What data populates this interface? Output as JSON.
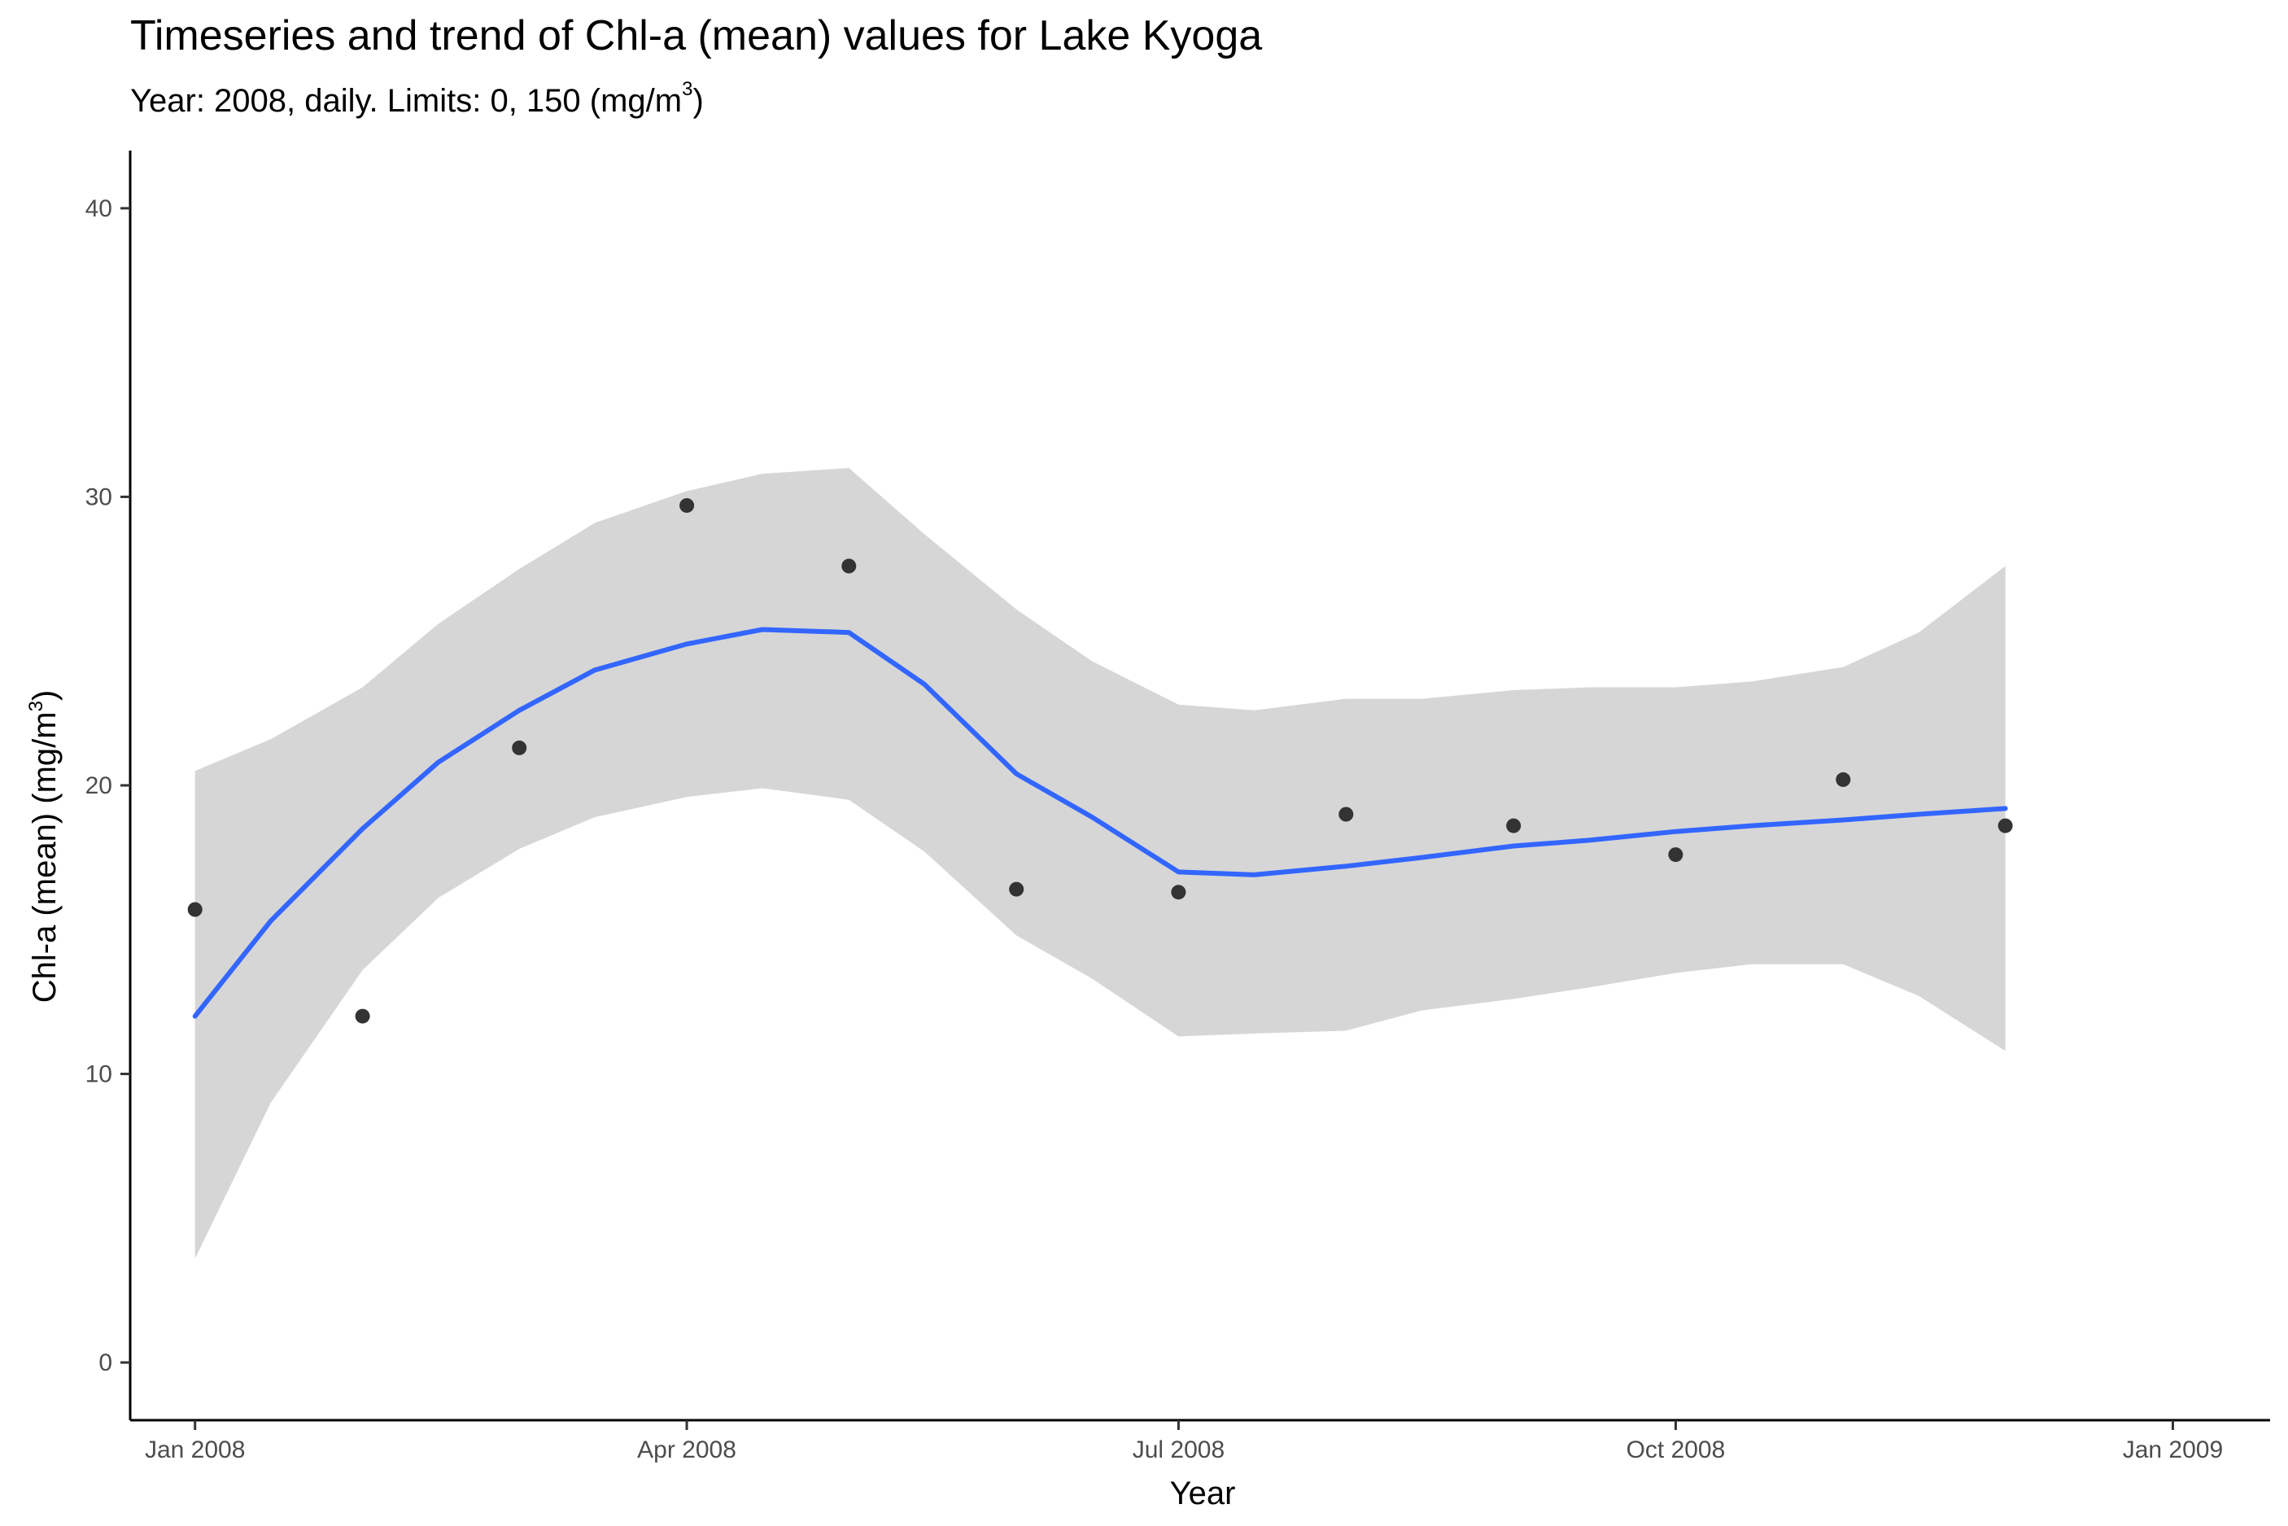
{
  "title": "Timeseries and trend of Chl-a (mean) values for Lake Kyoga",
  "subtitle": {
    "main": "Year: 2008, daily. Limits: 0, 150 (mg/m",
    "superscript": "3",
    "close": ")"
  },
  "chart_data": {
    "type": "scatter",
    "xlabel": "Year",
    "ylabel": {
      "main": "Chl-a (mean) (mg/m",
      "superscript": "3",
      "close": ")"
    },
    "xlim": [
      "2007-12-20",
      "2009-01-19"
    ],
    "ylim": [
      -2,
      42
    ],
    "x_ticks": [
      {
        "date": "2008-01-01",
        "label": "Jan 2008"
      },
      {
        "date": "2008-04-01",
        "label": "Apr 2008"
      },
      {
        "date": "2008-07-01",
        "label": "Jul 2008"
      },
      {
        "date": "2008-10-01",
        "label": "Oct 2008"
      },
      {
        "date": "2009-01-01",
        "label": "Jan 2009"
      }
    ],
    "y_ticks": [
      0,
      10,
      20,
      30,
      40
    ],
    "grid": false,
    "colors": {
      "points": "#333333",
      "trend": "#3366ff",
      "band": "#d6d6d6",
      "axis": "#000000"
    },
    "points": [
      {
        "x": "2008-01-01",
        "y": 15.7
      },
      {
        "x": "2008-02-01",
        "y": 12.0
      },
      {
        "x": "2008-03-01",
        "y": 21.3
      },
      {
        "x": "2008-04-01",
        "y": 29.7
      },
      {
        "x": "2008-05-01",
        "y": 27.6
      },
      {
        "x": "2008-06-01",
        "y": 16.4
      },
      {
        "x": "2008-07-01",
        "y": 16.3
      },
      {
        "x": "2008-08-01",
        "y": 19.0
      },
      {
        "x": "2008-09-01",
        "y": 18.6
      },
      {
        "x": "2008-10-01",
        "y": 17.6
      },
      {
        "x": "2008-11-01",
        "y": 20.2
      },
      {
        "x": "2008-12-01",
        "y": 18.6
      }
    ],
    "trend": {
      "method": "loess",
      "x": [
        "2008-01-01",
        "2008-01-15",
        "2008-02-01",
        "2008-02-15",
        "2008-03-01",
        "2008-03-15",
        "2008-04-01",
        "2008-04-15",
        "2008-05-01",
        "2008-05-15",
        "2008-06-01",
        "2008-06-15",
        "2008-07-01",
        "2008-07-15",
        "2008-08-01",
        "2008-08-15",
        "2008-09-01",
        "2008-09-15",
        "2008-10-01",
        "2008-10-15",
        "2008-11-01",
        "2008-11-15",
        "2008-12-01"
      ],
      "y": [
        12.0,
        15.3,
        18.5,
        20.8,
        22.6,
        24.0,
        24.9,
        25.4,
        25.3,
        23.5,
        20.4,
        18.9,
        17.0,
        16.9,
        17.2,
        17.5,
        17.9,
        18.1,
        18.4,
        18.6,
        18.8,
        19.0,
        19.2
      ],
      "lower": [
        3.6,
        9.0,
        13.6,
        16.1,
        17.8,
        18.9,
        19.6,
        19.9,
        19.5,
        17.7,
        14.8,
        13.3,
        11.3,
        11.4,
        11.5,
        12.2,
        12.6,
        13.0,
        13.5,
        13.8,
        13.8,
        12.7,
        10.8
      ],
      "upper": [
        20.5,
        21.6,
        23.4,
        25.6,
        27.5,
        29.1,
        30.2,
        30.8,
        31.0,
        28.7,
        26.1,
        24.3,
        22.8,
        22.6,
        23.0,
        23.0,
        23.3,
        23.4,
        23.4,
        23.6,
        24.1,
        25.3,
        27.6
      ]
    }
  }
}
